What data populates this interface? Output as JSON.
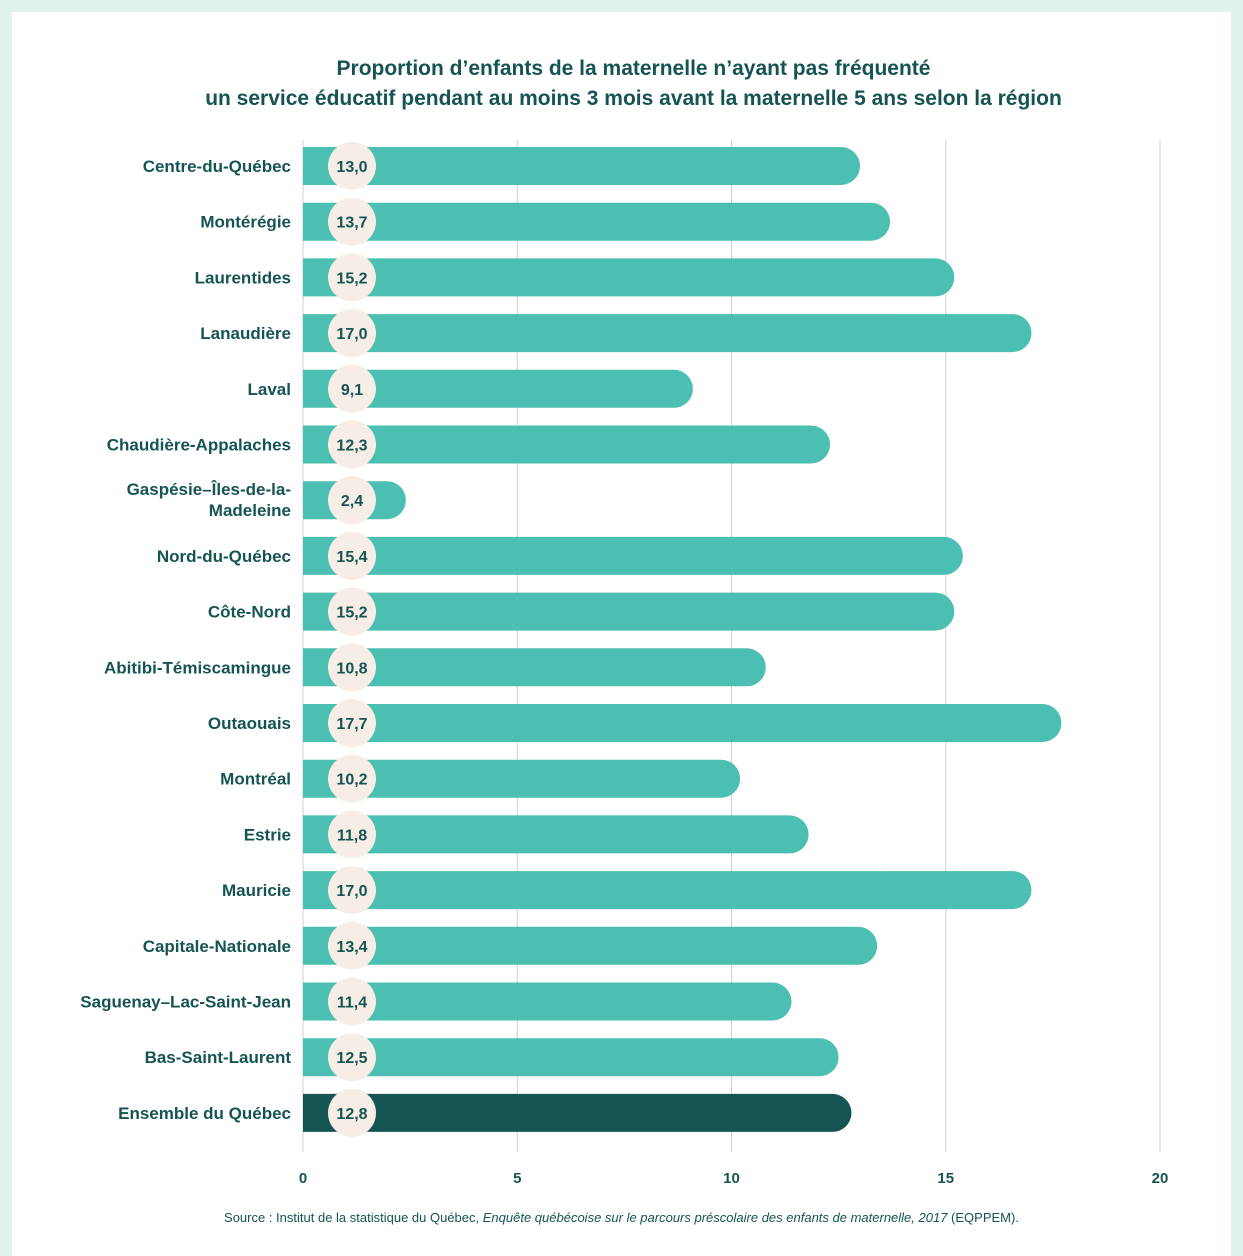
{
  "title_line1": "Proportion d’enfants de la maternelle n’ayant pas fréquenté",
  "title_line2": "un service éducatif pendant au moins 3 mois avant la maternelle 5 ans selon la région",
  "source": {
    "prefix": "Source : Institut de la statistique du Québec, ",
    "title": "Enquête québécoise sur le parcours préscolaire des enfants de maternelle, 2017",
    "suffix": " (EQPPEM)."
  },
  "colors": {
    "bar": "#4bbfb1",
    "total_bar": "#155452",
    "label_text": "#155452",
    "badge": "#f6eee6",
    "grid": "#cfcfcf",
    "frame": "#e1f3ee"
  },
  "chart_data": {
    "type": "bar",
    "orientation": "horizontal",
    "xlim": [
      0,
      20
    ],
    "x_ticks": [
      0,
      5,
      10,
      15,
      20
    ],
    "grid": true,
    "categories": [
      "Centre-du-Québec",
      "Montérégie",
      "Laurentides",
      "Lanaudière",
      "Laval",
      "Chaudière-Appalaches",
      "Gaspésie–Îles-de-la-Madeleine",
      "Nord-du-Québec",
      "Côte-Nord",
      "Abitibi-Témiscamingue",
      "Outaouais",
      "Montréal",
      "Estrie",
      "Mauricie",
      "Capitale-Nationale",
      "Saguenay–Lac-Saint-Jean",
      "Bas-Saint-Laurent",
      "Ensemble du Québec"
    ],
    "values": [
      13.0,
      13.7,
      15.2,
      17.0,
      9.1,
      12.3,
      2.4,
      15.4,
      15.2,
      10.8,
      17.7,
      10.2,
      11.8,
      17.0,
      13.4,
      11.4,
      12.5,
      12.8
    ],
    "value_labels": [
      "13,0",
      "13,7",
      "15,2",
      "17,0",
      "9,1",
      "12,3",
      "2,4",
      "15,4",
      "15,2",
      "10,8",
      "17,7",
      "10,2",
      "11,8",
      "17,0",
      "13,4",
      "11,4",
      "12,5",
      "12,8"
    ],
    "highlight_category": "Ensemble du Québec"
  }
}
